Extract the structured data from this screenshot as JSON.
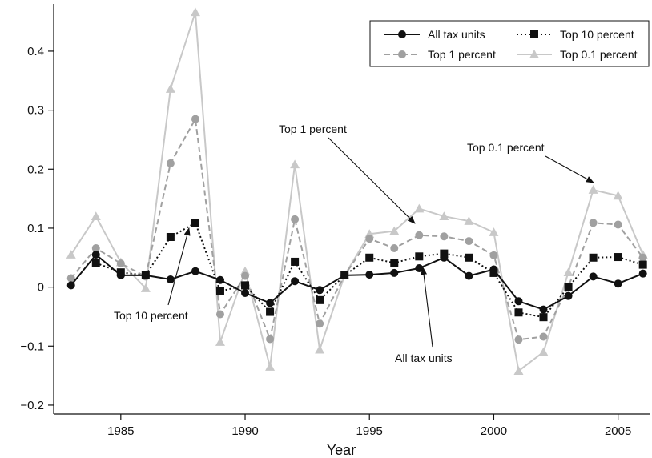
{
  "chart_data": {
    "type": "line",
    "xlabel": "Year",
    "ylabel": "",
    "xlim": [
      1982.3,
      2006.3
    ],
    "ylim": [
      -0.215,
      0.48
    ],
    "x_ticks": [
      1985,
      1990,
      1995,
      2000,
      2005
    ],
    "y_ticks": [
      -0.2,
      -0.1,
      0,
      0.1,
      0.2,
      0.3,
      0.4
    ],
    "y_tick_labels": [
      "−0.2",
      "−0.1",
      "0",
      "0.1",
      "0.2",
      "0.3",
      "0.4"
    ],
    "grid": false,
    "legend_position": "top-right",
    "x": [
      1983,
      1984,
      1985,
      1986,
      1987,
      1988,
      1989,
      1990,
      1991,
      1992,
      1993,
      1994,
      1995,
      1996,
      1997,
      1998,
      1999,
      2000,
      2001,
      2002,
      2003,
      2004,
      2005,
      2006
    ],
    "series": [
      {
        "name": "All tax units",
        "color": "#111111",
        "dash": "solid",
        "marker": "circle",
        "values": [
          0.003,
          0.055,
          0.02,
          0.02,
          0.013,
          0.027,
          0.012,
          -0.01,
          -0.027,
          0.01,
          -0.005,
          0.02,
          0.021,
          0.024,
          0.032,
          0.05,
          0.019,
          0.03,
          -0.024,
          -0.038,
          -0.015,
          0.018,
          0.006,
          0.023
        ]
      },
      {
        "name": "Top 10 percent",
        "color": "#111111",
        "dash": "dotted",
        "marker": "square",
        "values": [
          null,
          0.041,
          0.025,
          0.02,
          0.085,
          0.109,
          -0.007,
          0.003,
          -0.042,
          0.043,
          -0.022,
          0.02,
          0.05,
          0.041,
          0.052,
          0.057,
          0.05,
          0.024,
          -0.043,
          -0.051,
          0.0,
          0.05,
          0.051,
          0.038
        ]
      },
      {
        "name": "Top 1 percent",
        "color": "#a0a0a0",
        "dash": "dashed",
        "marker": "circle",
        "values": [
          0.015,
          0.066,
          0.04,
          0.018,
          0.21,
          0.285,
          -0.046,
          0.019,
          -0.088,
          0.115,
          -0.062,
          0.02,
          0.082,
          0.066,
          0.088,
          0.086,
          0.078,
          0.054,
          -0.089,
          -0.084,
          0.001,
          0.109,
          0.106,
          0.05
        ]
      },
      {
        "name": "Top 0.1 percent",
        "color": "#c8c8c8",
        "dash": "solid",
        "marker": "triangle",
        "values": [
          0.055,
          0.12,
          0.042,
          -0.002,
          0.336,
          0.466,
          -0.093,
          0.027,
          -0.135,
          0.208,
          -0.106,
          0.02,
          0.09,
          0.095,
          0.133,
          0.12,
          0.112,
          0.093,
          -0.142,
          -0.11,
          0.025,
          0.165,
          0.155,
          0.055
        ]
      }
    ],
    "annotations": [
      {
        "text": "Top 1 percent",
        "point": [
          1997,
          0.088
        ]
      },
      {
        "text": "Top 0.1 percent",
        "point": [
          2004,
          0.165
        ]
      },
      {
        "text": "Top 10 percent",
        "point": [
          1988,
          0.109
        ]
      },
      {
        "text": "All tax units",
        "point": [
          1997,
          0.032
        ]
      }
    ]
  }
}
